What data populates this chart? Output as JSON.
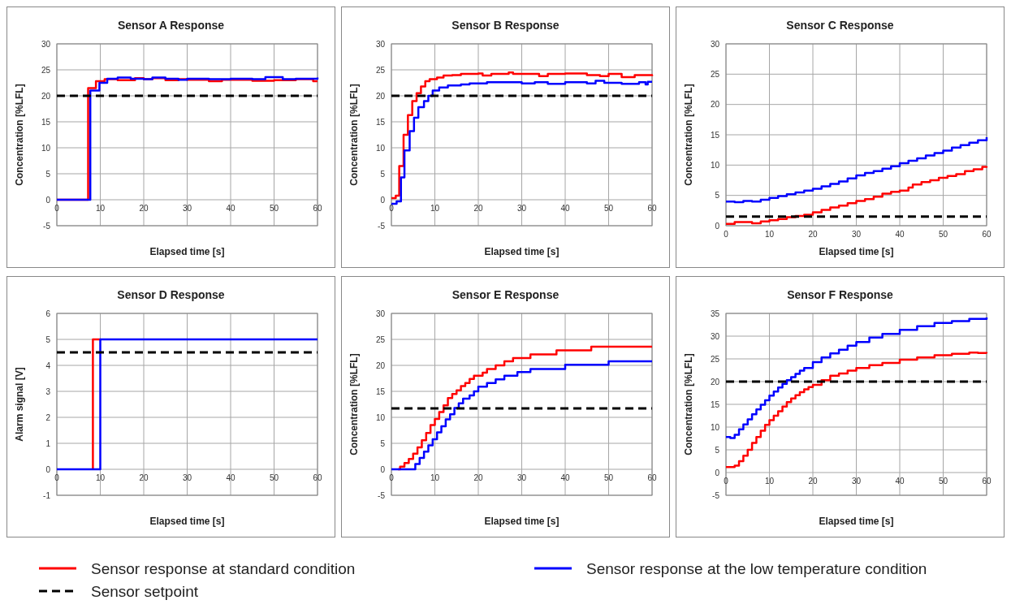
{
  "chart_data": [
    {
      "type": "step",
      "title": "Sensor A Response",
      "xlabel": "Elapsed time [s]",
      "ylabel": "Concentration [%LFL]",
      "xlim": [
        0,
        60
      ],
      "xticks": [
        0,
        10,
        20,
        30,
        40,
        50,
        60
      ],
      "ylim": [
        -5,
        30
      ],
      "yticks": [
        -5,
        0,
        5,
        10,
        15,
        20,
        25,
        30
      ],
      "grid": true,
      "legend": "bottom",
      "series": [
        {
          "name": "Sensor response at standard condition",
          "color": "#ff0000",
          "x": [
            0,
            7.2,
            9,
            11,
            14,
            18,
            20,
            22,
            25,
            28,
            30,
            35,
            38,
            45,
            50,
            55,
            59,
            60
          ],
          "values": [
            0,
            21.5,
            22.8,
            23.2,
            23.0,
            23.4,
            23.2,
            23.4,
            23.0,
            23.2,
            23.1,
            22.8,
            23.1,
            22.9,
            23.0,
            23.2,
            22.8,
            22.8
          ]
        },
        {
          "name": "Sensor response at the low temperature condition",
          "color": "#0000ff",
          "x": [
            0,
            7.7,
            9.8,
            11.6,
            14,
            17,
            20,
            22,
            25,
            28,
            30,
            35,
            40,
            45,
            48,
            52,
            55,
            60
          ],
          "values": [
            0,
            21.0,
            22.5,
            23.3,
            23.5,
            23.3,
            23.2,
            23.5,
            23.3,
            23.1,
            23.3,
            23.2,
            23.3,
            23.2,
            23.6,
            23.2,
            23.3,
            23.5
          ]
        },
        {
          "name": "Sensor setpoint",
          "type": "line",
          "color": "#000000",
          "line_style": "dashed",
          "x": [
            0,
            60
          ],
          "values": [
            20,
            20
          ]
        }
      ]
    },
    {
      "type": "step",
      "title": "Sensor B Response",
      "xlabel": "Elapsed time [s]",
      "ylabel": "Concentration [%LFL]",
      "xlim": [
        0,
        60
      ],
      "xticks": [
        0,
        10,
        20,
        30,
        40,
        50,
        60
      ],
      "ylim": [
        -5,
        30
      ],
      "yticks": [
        -5,
        0,
        5,
        10,
        15,
        20,
        25,
        30
      ],
      "grid": true,
      "series": [
        {
          "color": "#ff0000",
          "x": [
            0,
            1,
            1.8,
            2.8,
            3.8,
            4.8,
            5.8,
            6.8,
            7.8,
            8.8,
            10.5,
            12,
            14,
            16,
            20,
            21,
            23,
            27,
            28,
            34,
            36,
            40,
            45,
            48,
            50,
            53,
            56,
            60
          ],
          "values": [
            0.3,
            0.8,
            6.5,
            12.5,
            16.3,
            19,
            20.5,
            21.8,
            22.8,
            23.2,
            23.5,
            23.9,
            24,
            24.2,
            24.3,
            23.9,
            24.2,
            24.5,
            24.2,
            23.8,
            24.2,
            24.3,
            24.0,
            23.8,
            24.2,
            23.6,
            24.0,
            23.8
          ]
        },
        {
          "color": "#0000ff",
          "x": [
            0,
            1.2,
            2.2,
            3,
            4.2,
            5.2,
            6.2,
            7.5,
            8.5,
            9.5,
            11,
            13,
            16,
            18,
            22,
            27,
            30,
            33,
            36,
            40,
            45,
            47,
            49,
            53,
            57,
            58.5,
            59,
            60
          ],
          "values": [
            -0.8,
            -0.3,
            4.3,
            9.5,
            13.2,
            15.8,
            17.8,
            19,
            20,
            21,
            21.6,
            22,
            22.2,
            22.4,
            22.6,
            22.6,
            22.4,
            22.6,
            22.3,
            22.6,
            22.4,
            22.9,
            22.5,
            22.3,
            22.6,
            22.2,
            22.7,
            22.7
          ]
        },
        {
          "type": "line",
          "color": "#000000",
          "line_style": "dashed",
          "x": [
            0,
            60
          ],
          "values": [
            20,
            20
          ]
        }
      ]
    },
    {
      "type": "step",
      "title": "Sensor C Response",
      "xlabel": "Elapsed time [s]",
      "ylabel": "Concentration [%LFL]",
      "xlim": [
        0,
        60
      ],
      "xticks": [
        0,
        10,
        20,
        30,
        40,
        50,
        60
      ],
      "ylim": [
        0,
        30
      ],
      "yticks": [
        0,
        5,
        10,
        15,
        20,
        25,
        30
      ],
      "grid": true,
      "series": [
        {
          "color": "#ff0000",
          "x": [
            0,
            2,
            6,
            8,
            10,
            12,
            14,
            16,
            18,
            20,
            22,
            24,
            26,
            28,
            30,
            32,
            34,
            36,
            38,
            40,
            42,
            43,
            45,
            47,
            49,
            51,
            53,
            55,
            57,
            59,
            60
          ],
          "values": [
            0.3,
            0.6,
            0.4,
            0.7,
            0.9,
            1.1,
            1.4,
            1.6,
            1.8,
            2.2,
            2.6,
            3.0,
            3.3,
            3.7,
            4.1,
            4.4,
            4.8,
            5.3,
            5.6,
            5.8,
            6.3,
            6.8,
            7.2,
            7.5,
            7.9,
            8.2,
            8.5,
            9.0,
            9.3,
            9.7,
            9.8
          ]
        },
        {
          "color": "#0000ff",
          "x": [
            0,
            2,
            4,
            6,
            8,
            10,
            12,
            14,
            16,
            18,
            20,
            22,
            24,
            26,
            28,
            30,
            32,
            34,
            36,
            38,
            40,
            42,
            44,
            46,
            48,
            50,
            52,
            54,
            56,
            58,
            60
          ],
          "values": [
            4.0,
            3.9,
            4.1,
            4.0,
            4.3,
            4.6,
            4.9,
            5.2,
            5.5,
            5.8,
            6.1,
            6.5,
            6.9,
            7.3,
            7.8,
            8.3,
            8.7,
            9.0,
            9.4,
            9.8,
            10.3,
            10.7,
            11.1,
            11.6,
            12.0,
            12.4,
            12.9,
            13.3,
            13.7,
            14.1,
            14.6
          ]
        },
        {
          "type": "line",
          "color": "#000000",
          "line_style": "dashed",
          "x": [
            0,
            60
          ],
          "values": [
            1.5,
            1.5
          ]
        }
      ]
    },
    {
      "type": "step",
      "title": "Sensor D Response",
      "xlabel": "Elapsed time [s]",
      "ylabel": "Alarm signal [V]",
      "xlim": [
        0,
        60
      ],
      "xticks": [
        0,
        10,
        20,
        30,
        40,
        50,
        60
      ],
      "ylim": [
        -1,
        6
      ],
      "yticks": [
        -1,
        0,
        1,
        2,
        3,
        4,
        5,
        6
      ],
      "grid": true,
      "series": [
        {
          "color": "#ff0000",
          "x": [
            8.3,
            8.3,
            10
          ],
          "values": [
            0,
            5,
            5
          ]
        },
        {
          "color": "#0000ff",
          "x": [
            0,
            10,
            60
          ],
          "values": [
            0,
            5,
            5
          ]
        },
        {
          "type": "line",
          "color": "#000000",
          "line_style": "dashed",
          "x": [
            0,
            60
          ],
          "values": [
            4.5,
            4.5
          ]
        }
      ]
    },
    {
      "type": "step",
      "title": "Sensor E Response",
      "xlabel": "Elapsed time [s]",
      "ylabel": "Concentration [%LFL]",
      "xlim": [
        0,
        60
      ],
      "xticks": [
        0,
        10,
        20,
        30,
        40,
        50,
        60
      ],
      "ylim": [
        -5,
        30
      ],
      "yticks": [
        -5,
        0,
        5,
        10,
        15,
        20,
        25,
        30
      ],
      "grid": true,
      "series": [
        {
          "color": "#ff0000",
          "x": [
            1.5,
            2,
            3,
            4,
            5,
            6,
            7,
            8,
            9,
            10,
            11,
            12,
            13,
            14,
            15,
            16,
            17,
            18,
            19,
            21,
            22,
            24,
            26,
            28,
            32,
            38,
            46,
            60
          ],
          "values": [
            0,
            0.5,
            1.2,
            2,
            3,
            4.2,
            5.6,
            7,
            8.5,
            9.7,
            11,
            12.3,
            13.7,
            14.5,
            15.2,
            16,
            16.6,
            17.4,
            18,
            18.6,
            19.3,
            20,
            20.8,
            21.4,
            22.1,
            22.9,
            23.6,
            23.6
          ]
        },
        {
          "color": "#0000ff",
          "x": [
            0,
            5,
            5.5,
            6.5,
            7.5,
            8.5,
            9.5,
            10.5,
            11.5,
            12.5,
            13.5,
            14.5,
            15.5,
            16.5,
            18,
            19,
            20,
            22,
            24,
            26,
            29,
            32,
            40,
            50,
            60
          ],
          "values": [
            0,
            0,
            1,
            2.2,
            3.4,
            4.6,
            5.8,
            7.1,
            8.3,
            9.6,
            10.6,
            11.8,
            12.7,
            13.6,
            14.2,
            15,
            15.9,
            16.6,
            17.3,
            18,
            18.7,
            19.3,
            20.1,
            20.8,
            20.8
          ]
        },
        {
          "type": "line",
          "color": "#000000",
          "line_style": "dashed",
          "x": [
            0,
            60
          ],
          "values": [
            11.7,
            11.7
          ]
        }
      ]
    },
    {
      "type": "step",
      "title": "Sensor F Response",
      "xlabel": "Elapsed time [s]",
      "ylabel": "Concentration [%LFL]",
      "xlim": [
        0,
        60
      ],
      "xticks": [
        0,
        10,
        20,
        30,
        40,
        50,
        60
      ],
      "ylim": [
        -5,
        35
      ],
      "yticks": [
        -5,
        0,
        5,
        10,
        15,
        20,
        25,
        30,
        35
      ],
      "grid": true,
      "series": [
        {
          "color": "#ff0000",
          "x": [
            0,
            2,
            3,
            4,
            5,
            6,
            7,
            8,
            9,
            10,
            11,
            12,
            13,
            14,
            15,
            16,
            17,
            18,
            19,
            20,
            22,
            24,
            26,
            28,
            30,
            33,
            36,
            40,
            44,
            48,
            52,
            56,
            58,
            60
          ],
          "values": [
            1.2,
            1.5,
            2.5,
            3.7,
            5,
            6.5,
            7.8,
            9.2,
            10.5,
            11.5,
            12.5,
            13.5,
            14.5,
            15.5,
            16.3,
            17,
            17.7,
            18.3,
            18.8,
            19.3,
            20.3,
            21.3,
            21.8,
            22.4,
            23,
            23.6,
            24.1,
            24.8,
            25.3,
            25.8,
            26.1,
            26.4,
            26.3,
            26.2
          ]
        },
        {
          "color": "#0000ff",
          "x": [
            0,
            1,
            2,
            3,
            4,
            5,
            6,
            7,
            8,
            9,
            10,
            11,
            12,
            13,
            14,
            15,
            16,
            17,
            18,
            20,
            22,
            24,
            26,
            28,
            30,
            33,
            36,
            40,
            44,
            48,
            52,
            56,
            60
          ],
          "values": [
            7.8,
            7.6,
            8.3,
            9.5,
            10.6,
            11.7,
            12.8,
            13.9,
            14.9,
            15.9,
            16.9,
            17.8,
            18.7,
            19.5,
            20.3,
            21,
            21.7,
            22.4,
            23,
            24.3,
            25.3,
            26.2,
            27,
            27.9,
            28.7,
            29.7,
            30.5,
            31.4,
            32.2,
            32.9,
            33.3,
            33.8,
            34.1
          ]
        },
        {
          "type": "line",
          "color": "#000000",
          "line_style": "dashed",
          "x": [
            0,
            60
          ],
          "values": [
            20,
            20
          ]
        }
      ]
    }
  ]
}
